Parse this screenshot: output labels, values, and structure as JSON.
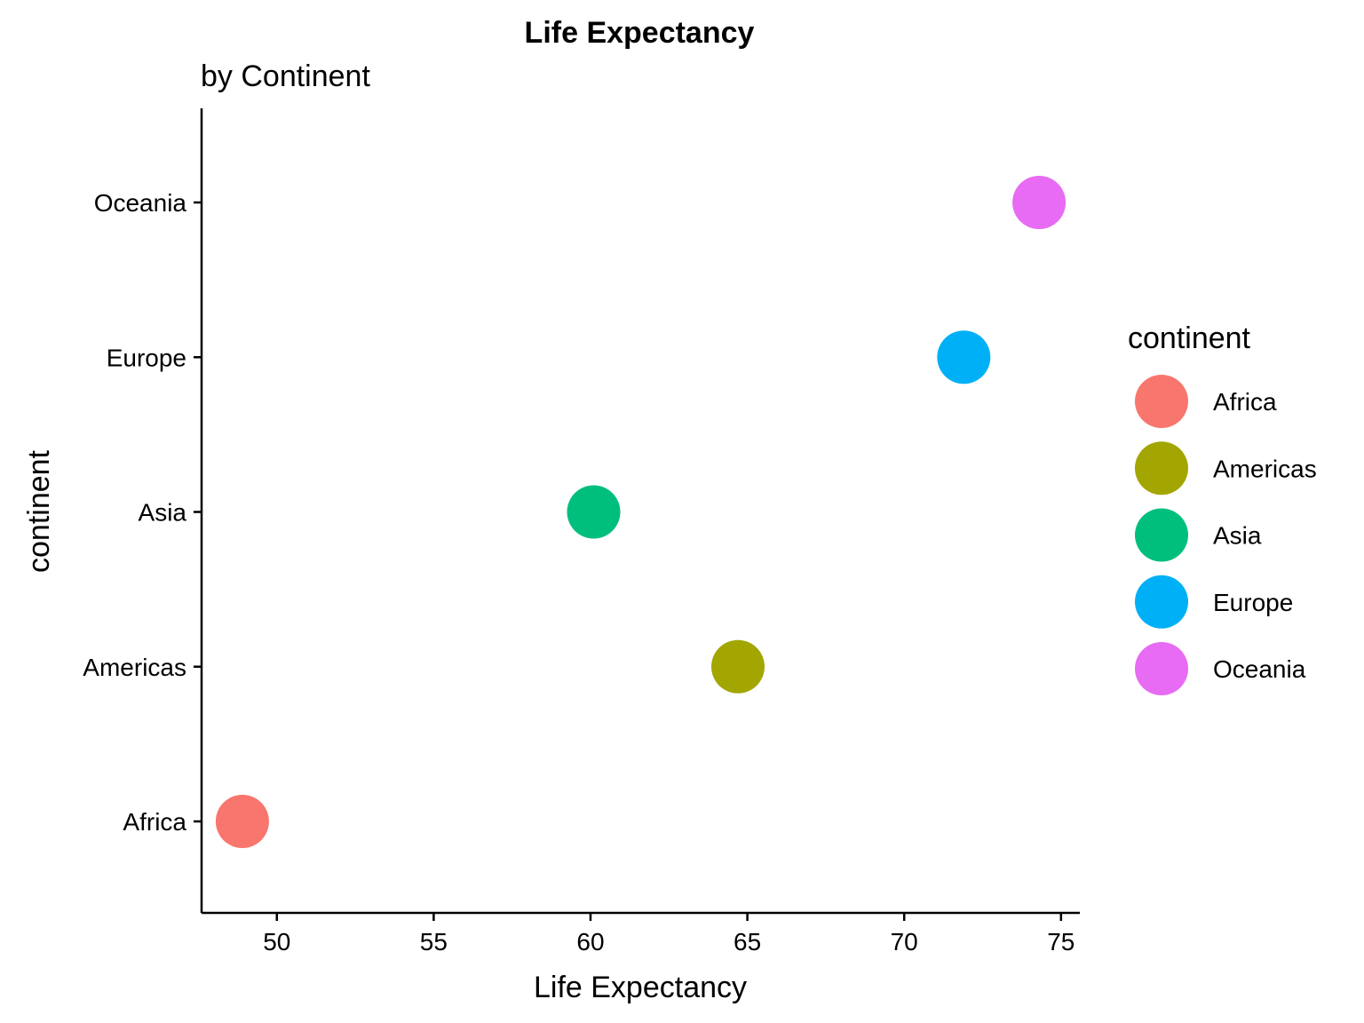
{
  "chart_data": {
    "type": "scatter",
    "title": "Life Expectancy",
    "subtitle": "by Continent",
    "xlabel": "Life Expectancy",
    "ylabel": "continent",
    "xlim": [
      47.6,
      75.6
    ],
    "x_ticks": [
      "50",
      "55",
      "60",
      "65",
      "70",
      "75"
    ],
    "categories": [
      "Africa",
      "Americas",
      "Asia",
      "Europe",
      "Oceania"
    ],
    "points": [
      {
        "category": "Africa",
        "x": 48.9,
        "color": "#F8766D"
      },
      {
        "category": "Americas",
        "x": 64.7,
        "color": "#A3A500"
      },
      {
        "category": "Asia",
        "x": 60.1,
        "color": "#00BF7D"
      },
      {
        "category": "Europe",
        "x": 71.9,
        "color": "#00B0F6"
      },
      {
        "category": "Oceania",
        "x": 74.3,
        "color": "#E76BF3"
      }
    ],
    "legend": {
      "title": "continent",
      "position": "right",
      "items": [
        {
          "label": "Africa",
          "color": "#F8766D"
        },
        {
          "label": "Americas",
          "color": "#A3A500"
        },
        {
          "label": "Asia",
          "color": "#00BF7D"
        },
        {
          "label": "Europe",
          "color": "#00B0F6"
        },
        {
          "label": "Oceania",
          "color": "#E76BF3"
        }
      ]
    },
    "grid": false
  }
}
